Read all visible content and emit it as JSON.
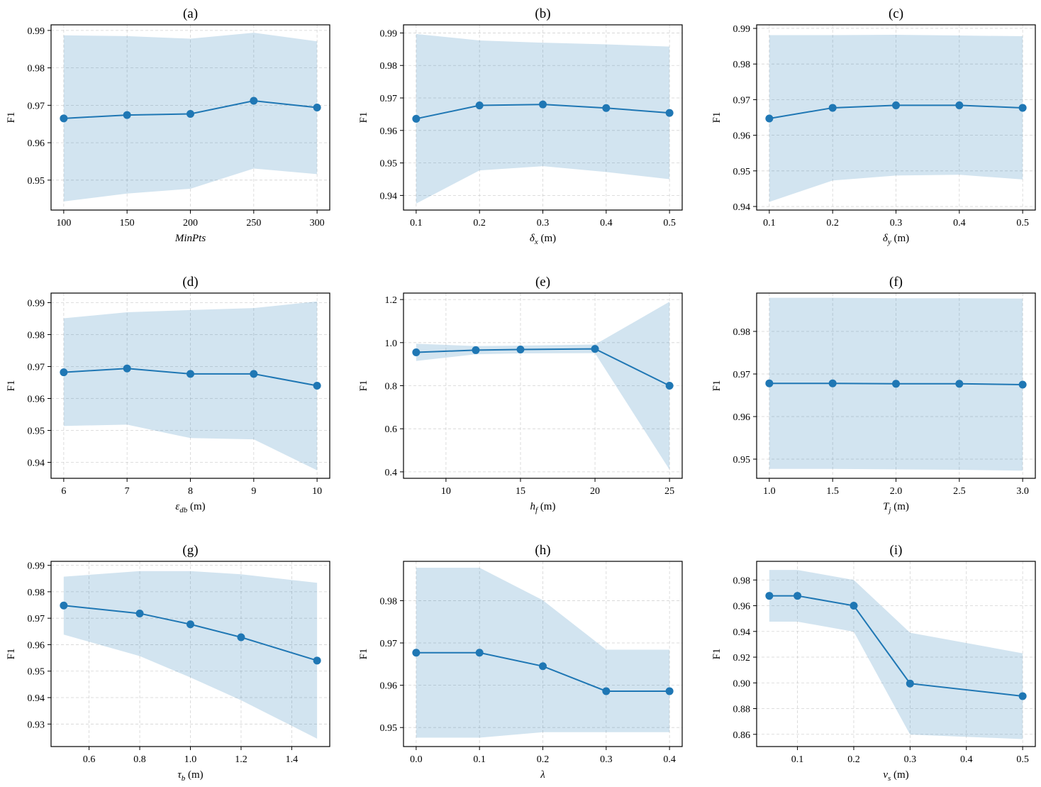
{
  "colors": {
    "line": "#1f77b4",
    "band": "#1f77b4",
    "grid": "#b0b0b0",
    "axes": "#000000"
  },
  "chart_data": [
    {
      "type": "line",
      "title": "(a)",
      "ylabel": "F1",
      "xlabel": {
        "main": "MinPts",
        "italic": true
      },
      "x": [
        100,
        150,
        200,
        250,
        300
      ],
      "xticks": [
        "100",
        "150",
        "200",
        "250",
        "300"
      ],
      "xlim": [
        90,
        310
      ],
      "yticks": [
        "0.95",
        "0.96",
        "0.97",
        "0.98",
        "0.99"
      ],
      "ylim": [
        0.942,
        0.9915
      ],
      "series": [
        {
          "values": [
            0.9665,
            0.9674,
            0.9677,
            0.9712,
            0.9694
          ],
          "lower": [
            0.9443,
            0.9464,
            0.9477,
            0.9531,
            0.9516
          ],
          "upper": [
            0.9887,
            0.9885,
            0.9878,
            0.9894,
            0.9871
          ]
        }
      ],
      "grid": true
    },
    {
      "type": "line",
      "title": "(b)",
      "ylabel": "F1",
      "xlabel": {
        "main": "δ",
        "sub": "x",
        "unit": " (m)"
      },
      "x": [
        0.1,
        0.2,
        0.3,
        0.4,
        0.5
      ],
      "xticks": [
        "0.1",
        "0.2",
        "0.3",
        "0.4",
        "0.5"
      ],
      "xlim": [
        0.08,
        0.52
      ],
      "yticks": [
        "0.94",
        "0.95",
        "0.96",
        "0.97",
        "0.98",
        "0.99"
      ],
      "ylim": [
        0.9355,
        0.9925
      ],
      "series": [
        {
          "values": [
            0.9636,
            0.9677,
            0.968,
            0.9669,
            0.9654
          ],
          "lower": [
            0.9375,
            0.9477,
            0.949,
            0.9472,
            0.945
          ],
          "upper": [
            0.9897,
            0.9877,
            0.987,
            0.9865,
            0.9858
          ]
        }
      ],
      "grid": true
    },
    {
      "type": "line",
      "title": "(c)",
      "ylabel": "F1",
      "xlabel": {
        "main": "δ",
        "sub": "y",
        "unit": " (m)"
      },
      "x": [
        0.1,
        0.2,
        0.3,
        0.4,
        0.5
      ],
      "xticks": [
        "0.1",
        "0.2",
        "0.3",
        "0.4",
        "0.5"
      ],
      "xlim": [
        0.08,
        0.52
      ],
      "yticks": [
        "0.94",
        "0.95",
        "0.96",
        "0.97",
        "0.98",
        "0.99"
      ],
      "ylim": [
        0.939,
        0.991
      ],
      "series": [
        {
          "values": [
            0.9647,
            0.9677,
            0.9684,
            0.9684,
            0.9677
          ],
          "lower": [
            0.9413,
            0.9473,
            0.9487,
            0.9489,
            0.9476
          ],
          "upper": [
            0.9881,
            0.9881,
            0.9882,
            0.988,
            0.9878
          ]
        }
      ],
      "grid": true
    },
    {
      "type": "line",
      "title": "(d)",
      "ylabel": "F1",
      "xlabel": {
        "main": "ε",
        "sub": "db",
        "unit": " (m)"
      },
      "x": [
        6,
        7,
        8,
        9,
        10
      ],
      "xticks": [
        "6",
        "7",
        "8",
        "9",
        "10"
      ],
      "xlim": [
        5.8,
        10.2
      ],
      "yticks": [
        "0.94",
        "0.95",
        "0.96",
        "0.97",
        "0.98",
        "0.99"
      ],
      "ylim": [
        0.935,
        0.993
      ],
      "series": [
        {
          "values": [
            0.9682,
            0.9694,
            0.9677,
            0.9677,
            0.964
          ],
          "lower": [
            0.9514,
            0.9518,
            0.9476,
            0.9472,
            0.9375
          ],
          "upper": [
            0.9851,
            0.987,
            0.9877,
            0.9883,
            0.9904
          ]
        }
      ],
      "grid": true
    },
    {
      "type": "line",
      "title": "(e)",
      "ylabel": "F1",
      "xlabel": {
        "main": "h",
        "sub": "f",
        "unit": " (m)"
      },
      "x": [
        8,
        12,
        15,
        20,
        25
      ],
      "xticks": [
        "10",
        "15",
        "20",
        "25"
      ],
      "xtickvals": [
        10,
        15,
        20,
        25
      ],
      "xlim": [
        7.15,
        25.85
      ],
      "yticks": [
        "0.4",
        "0.6",
        "0.8",
        "1.0",
        "1.2"
      ],
      "ylim": [
        0.37,
        1.23
      ],
      "series": [
        {
          "values": [
            0.955,
            0.965,
            0.968,
            0.971,
            0.8
          ],
          "lower": [
            0.915,
            0.946,
            0.95,
            0.951,
            0.41
          ],
          "upper": [
            0.995,
            0.984,
            0.986,
            0.991,
            1.19
          ]
        }
      ],
      "grid": true
    },
    {
      "type": "line",
      "title": "(f)",
      "ylabel": "F1",
      "xlabel": {
        "main": "T",
        "sub": "j",
        "unit": " (m)"
      },
      "x": [
        1.0,
        1.5,
        2.0,
        2.5,
        3.0
      ],
      "xticks": [
        "1.0",
        "1.5",
        "2.0",
        "2.5",
        "3.0"
      ],
      "xlim": [
        0.9,
        3.1
      ],
      "yticks": [
        "0.95",
        "0.96",
        "0.97",
        "0.98"
      ],
      "ylim": [
        0.9455,
        0.989
      ],
      "series": [
        {
          "values": [
            0.9678,
            0.9678,
            0.9677,
            0.9677,
            0.9675
          ],
          "lower": [
            0.9477,
            0.9477,
            0.9476,
            0.9475,
            0.9473
          ],
          "upper": [
            0.9879,
            0.9879,
            0.9878,
            0.9878,
            0.9877
          ]
        }
      ],
      "grid": true
    },
    {
      "type": "line",
      "title": "(g)",
      "ylabel": "F1",
      "xlabel": {
        "main": "τ",
        "sub": "b",
        "unit": " (m)"
      },
      "x": [
        0.5,
        0.8,
        1.0,
        1.2,
        1.5
      ],
      "xticks": [
        "0.6",
        "0.8",
        "1.0",
        "1.2",
        "1.4"
      ],
      "xtickvals": [
        0.6,
        0.8,
        1.0,
        1.2,
        1.4
      ],
      "xlim": [
        0.45,
        1.55
      ],
      "yticks": [
        "0.93",
        "0.94",
        "0.95",
        "0.96",
        "0.97",
        "0.98",
        "0.99"
      ],
      "ylim": [
        0.9215,
        0.9915
      ],
      "series": [
        {
          "values": [
            0.9748,
            0.9718,
            0.9677,
            0.9628,
            0.954
          ],
          "lower": [
            0.9638,
            0.9557,
            0.9476,
            0.939,
            0.9245
          ],
          "upper": [
            0.9857,
            0.9878,
            0.9878,
            0.9866,
            0.9834
          ]
        }
      ],
      "grid": true
    },
    {
      "type": "line",
      "title": "(h)",
      "ylabel": "F1",
      "xlabel": {
        "main": "λ",
        "italic": true
      },
      "x": [
        0.0,
        0.1,
        0.2,
        0.3,
        0.4
      ],
      "xticks": [
        "0.0",
        "0.1",
        "0.2",
        "0.3",
        "0.4"
      ],
      "xlim": [
        -0.02,
        0.42
      ],
      "yticks": [
        "0.95",
        "0.96",
        "0.97",
        "0.98"
      ],
      "ylim": [
        0.9455,
        0.9893
      ],
      "series": [
        {
          "values": [
            0.9677,
            0.9677,
            0.9645,
            0.9586,
            0.9586
          ],
          "lower": [
            0.9476,
            0.9476,
            0.9489,
            0.9489,
            0.9489
          ],
          "upper": [
            0.9878,
            0.9878,
            0.9801,
            0.9684,
            0.9684
          ]
        }
      ],
      "grid": true
    },
    {
      "type": "line",
      "title": "(i)",
      "ylabel": "F1",
      "xlabel": {
        "main": "v",
        "sub": "s",
        "unit": " (m)"
      },
      "x": [
        0.05,
        0.1,
        0.2,
        0.3,
        0.5
      ],
      "xticks": [
        "0.1",
        "0.2",
        "0.3",
        "0.4",
        "0.5"
      ],
      "xtickvals": [
        0.1,
        0.2,
        0.3,
        0.4,
        0.5
      ],
      "xlim": [
        0.0275,
        0.5225
      ],
      "yticks": [
        "0.86",
        "0.88",
        "0.90",
        "0.92",
        "0.94",
        "0.96",
        "0.98"
      ],
      "ylim": [
        0.8505,
        0.9945
      ],
      "series": [
        {
          "values": [
            0.9677,
            0.9677,
            0.96,
            0.8995,
            0.8897
          ],
          "lower": [
            0.9476,
            0.9476,
            0.9398,
            0.8598,
            0.8563
          ],
          "upper": [
            0.9878,
            0.9878,
            0.98,
            0.939,
            0.923
          ]
        }
      ],
      "grid": true
    }
  ]
}
